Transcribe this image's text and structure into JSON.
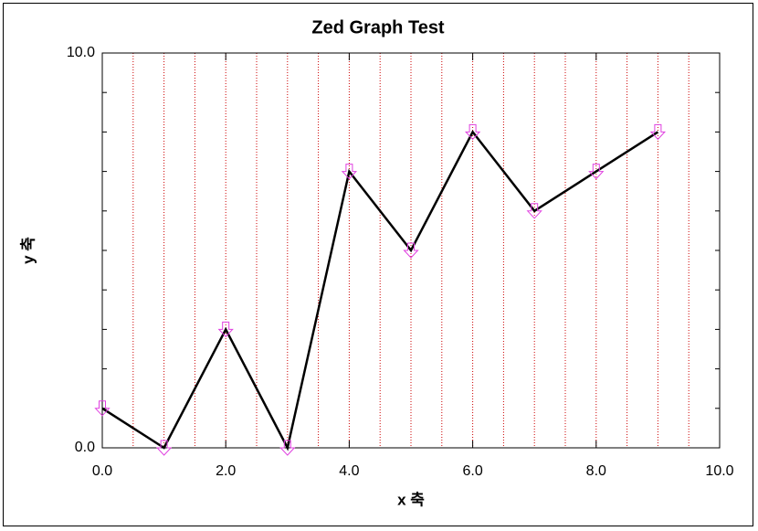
{
  "chart_data": {
    "type": "line",
    "title": "Zed Graph Test",
    "x_label": "x 축",
    "y_label": "y 축",
    "x": [
      0,
      1,
      2,
      3,
      4,
      5,
      6,
      7,
      8,
      9
    ],
    "values": [
      1,
      0,
      3,
      0,
      7,
      5,
      8,
      6,
      7,
      8
    ],
    "color": "#000000",
    "marker_color": "#e040e0",
    "xlim": [
      0,
      10
    ],
    "ylim": [
      0,
      10
    ],
    "xticks": [
      {
        "value": 0,
        "label": "0.0"
      },
      {
        "value": 2,
        "label": "2.0"
      },
      {
        "value": 4,
        "label": "4.0"
      },
      {
        "value": 6,
        "label": "6.0"
      },
      {
        "value": 8,
        "label": "8.0"
      },
      {
        "value": 10,
        "label": "10.0"
      }
    ],
    "yticks": [
      {
        "value": 0,
        "label": "0.0"
      },
      {
        "value": 10,
        "label": "10.0"
      }
    ],
    "x_grid": [
      0.5,
      1,
      1.5,
      2,
      2.5,
      3,
      3.5,
      4,
      4.5,
      5,
      5.5,
      6,
      6.5,
      7,
      7.5,
      8,
      8.5,
      9,
      9.5
    ],
    "y_minor_ticks": [
      1,
      2,
      3,
      4,
      5,
      6,
      7,
      8,
      9
    ],
    "grid_color": "#cc0000"
  }
}
